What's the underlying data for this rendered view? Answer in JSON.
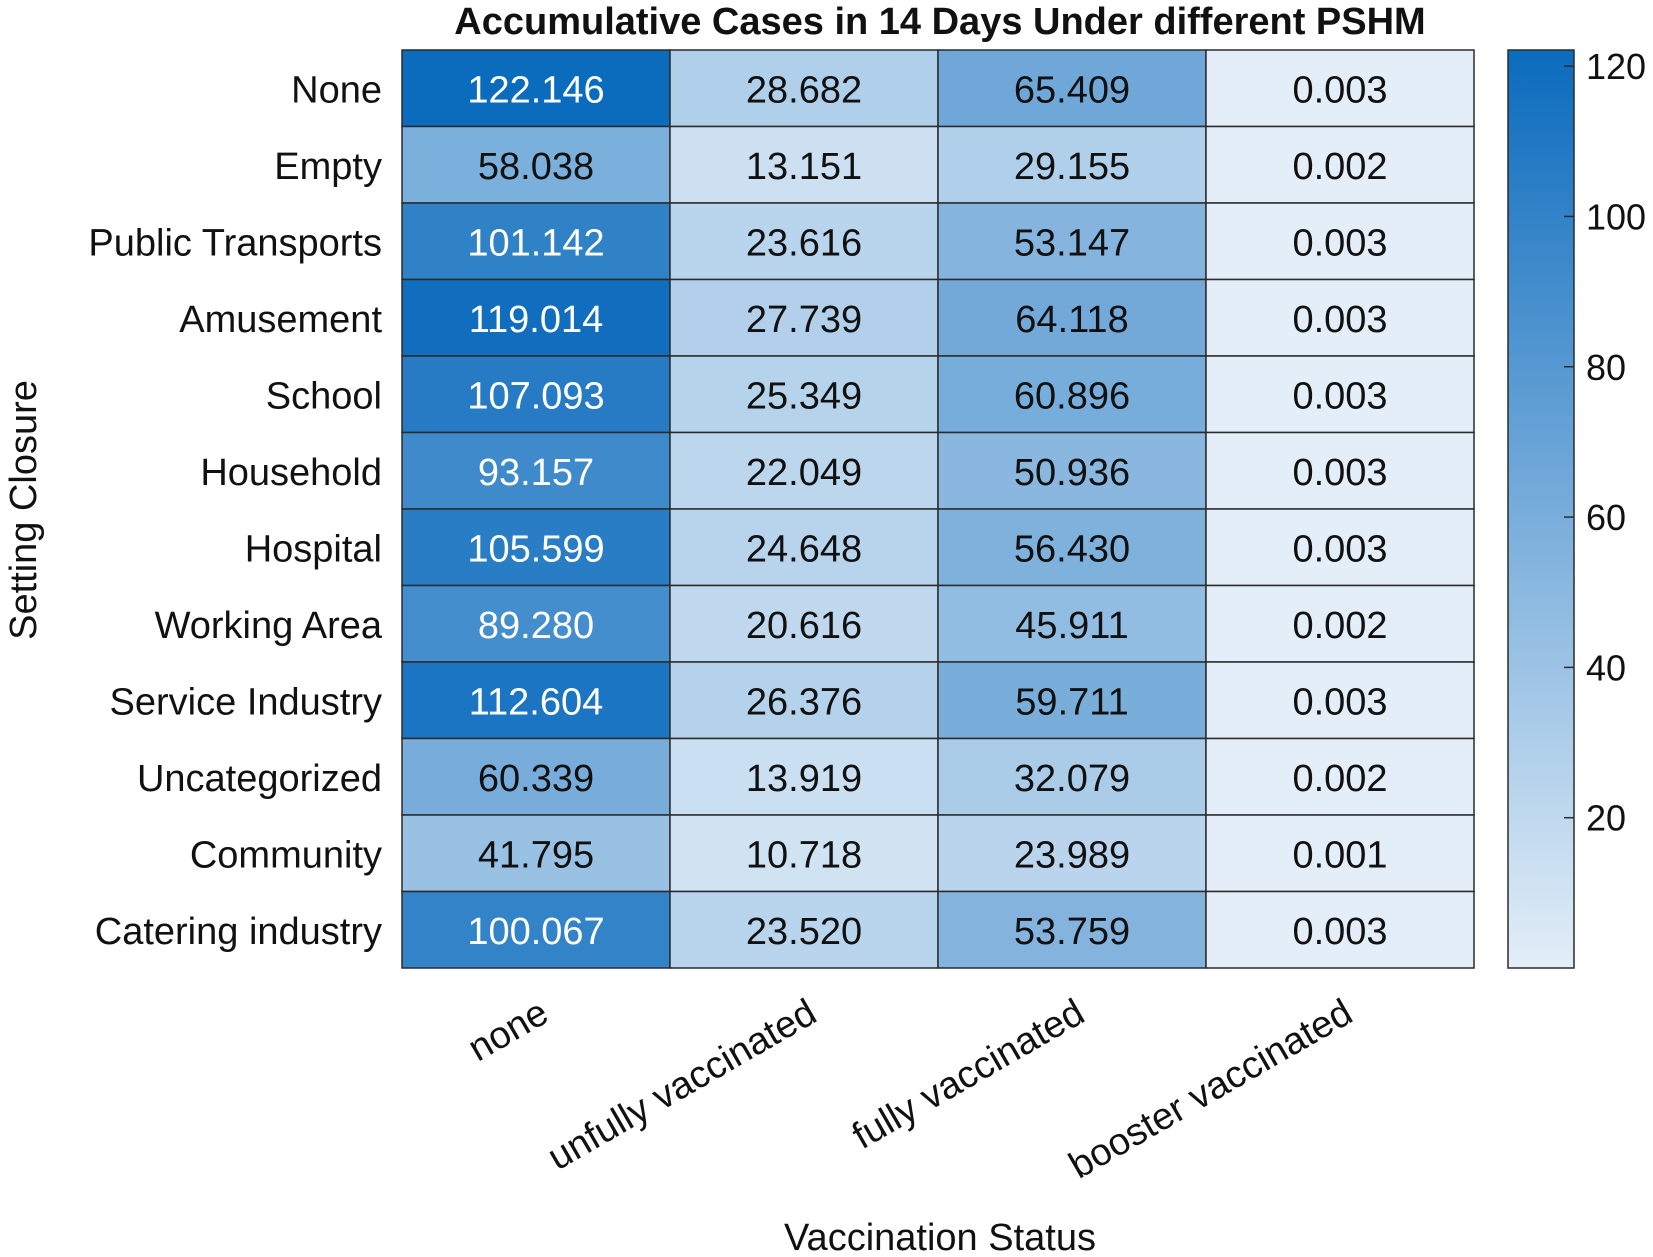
{
  "chart_data": {
    "type": "heatmap",
    "title": "Accumulative Cases in 14 Days Under different PSHM",
    "xlabel": "Vaccination Status",
    "ylabel": "Setting Closure",
    "x_categories": [
      "none",
      "unfully vaccinated",
      "fully vaccinated",
      "booster vaccinated"
    ],
    "y_categories": [
      "None",
      "Empty",
      "Public Transports",
      "Amusement",
      "School",
      "Household",
      "Hospital",
      "Working Area",
      "Service Industry",
      "Uncategorized",
      "Community",
      "Catering industry"
    ],
    "values": [
      [
        122.146,
        28.682,
        65.409,
        0.003
      ],
      [
        58.038,
        13.151,
        29.155,
        0.002
      ],
      [
        101.142,
        23.616,
        53.147,
        0.003
      ],
      [
        119.014,
        27.739,
        64.118,
        0.003
      ],
      [
        107.093,
        25.349,
        60.896,
        0.003
      ],
      [
        93.157,
        22.049,
        50.936,
        0.003
      ],
      [
        105.599,
        24.648,
        56.43,
        0.003
      ],
      [
        89.28,
        20.616,
        45.911,
        0.002
      ],
      [
        112.604,
        26.376,
        59.711,
        0.003
      ],
      [
        60.339,
        13.919,
        32.079,
        0.002
      ],
      [
        41.795,
        10.718,
        23.989,
        0.001
      ],
      [
        100.067,
        23.52,
        53.759,
        0.003
      ]
    ],
    "labels": [
      [
        "122.146",
        "28.682",
        "65.409",
        "0.003"
      ],
      [
        "58.038",
        "13.151",
        "29.155",
        "0.002"
      ],
      [
        "101.142",
        "23.616",
        "53.147",
        "0.003"
      ],
      [
        "119.014",
        "27.739",
        "64.118",
        "0.003"
      ],
      [
        "107.093",
        "25.349",
        "60.896",
        "0.003"
      ],
      [
        "93.157",
        "22.049",
        "50.936",
        "0.003"
      ],
      [
        "105.599",
        "24.648",
        "56.430",
        "0.003"
      ],
      [
        "89.280",
        "20.616",
        "45.911",
        "0.002"
      ],
      [
        "112.604",
        "26.376",
        "59.711",
        "0.003"
      ],
      [
        "60.339",
        "13.919",
        "32.079",
        "0.002"
      ],
      [
        "41.795",
        "10.718",
        "23.989",
        "0.001"
      ],
      [
        "100.067",
        "23.520",
        "53.759",
        "0.003"
      ]
    ],
    "colorbar": {
      "range": [
        0.001,
        122.146
      ],
      "ticks": [
        20,
        40,
        60,
        80,
        100,
        120
      ],
      "tick_labels": [
        "20",
        "40",
        "60",
        "80",
        "100",
        "120"
      ]
    },
    "colors": {
      "low": "#e3eef8",
      "high": "#0b6bbd",
      "grid": "#2b2b2b",
      "text_dark": "#111111",
      "text_light": "#ffffff"
    },
    "grid": true,
    "legend": "colorbar-right"
  }
}
